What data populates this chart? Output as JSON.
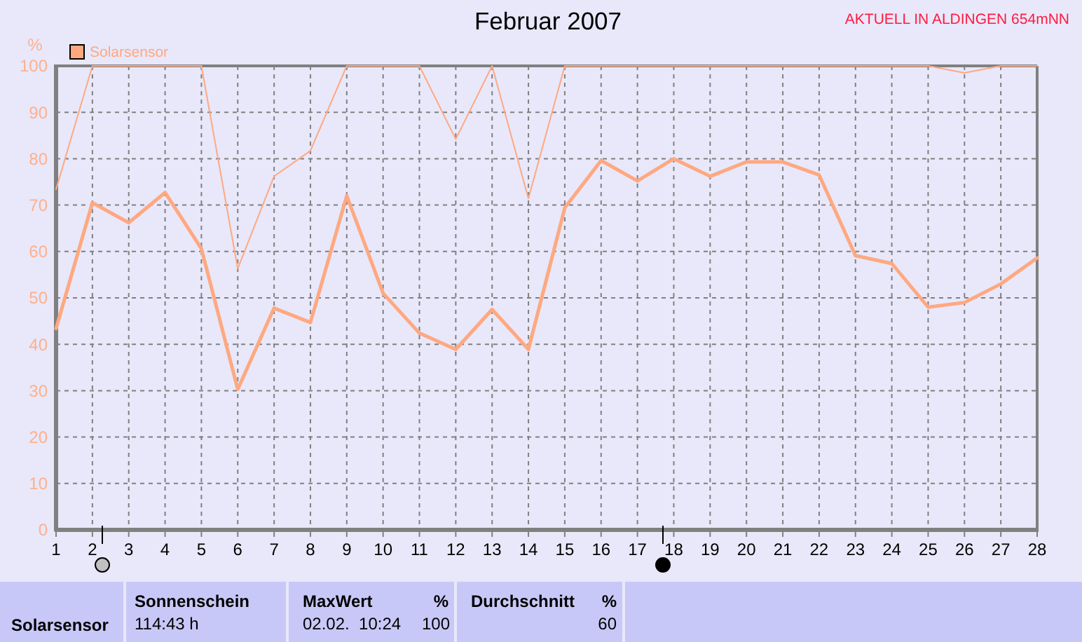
{
  "chart_data": {
    "type": "line",
    "title": "Februar 2007",
    "ylabel": "%",
    "x": [
      1,
      2,
      3,
      4,
      5,
      6,
      7,
      8,
      9,
      10,
      11,
      12,
      13,
      14,
      15,
      16,
      17,
      18,
      19,
      20,
      21,
      22,
      23,
      24,
      25,
      26,
      27,
      28
    ],
    "xlim": [
      1,
      28
    ],
    "xticks": [
      1,
      2,
      3,
      4,
      5,
      6,
      7,
      8,
      9,
      10,
      11,
      12,
      13,
      14,
      15,
      16,
      17,
      18,
      19,
      20,
      21,
      22,
      23,
      24,
      25,
      26,
      27,
      28
    ],
    "ylim": [
      0,
      100
    ],
    "yticks": [
      0,
      10,
      20,
      30,
      40,
      50,
      60,
      70,
      80,
      90,
      100
    ],
    "grid": true,
    "legend": "top left",
    "line_style": "solid",
    "series": [
      {
        "name": "Solarsensor",
        "color": "#ffa880",
        "values": [
          43.4,
          70.5,
          66.2,
          72.7,
          60.6,
          30.3,
          47.8,
          44.7,
          72.0,
          51.0,
          42.4,
          38.9,
          47.5,
          38.9,
          69.4,
          79.6,
          75.2,
          80.0,
          76.2,
          79.3,
          79.3,
          76.5,
          59.1,
          57.4,
          48.0,
          49.0,
          53.0,
          58.6
        ]
      },
      {
        "color": "#ffa880",
        "values": [
          73.4,
          100,
          100,
          100,
          100,
          56.3,
          76.2,
          81.7,
          100,
          100,
          100,
          84.2,
          100,
          71.4,
          100,
          100,
          100,
          100,
          100,
          100,
          100,
          100,
          100,
          100,
          100,
          98.5,
          100,
          100
        ]
      }
    ],
    "annotations": [
      "AKTUELL IN ALDINGEN 654mNN",
      "Solarsensor",
      "Sonnenschein",
      "114:43 h",
      "MaxWert",
      "%",
      "02.02.  10:24",
      "100",
      "Durchschnitt",
      "%",
      "60"
    ]
  }
}
